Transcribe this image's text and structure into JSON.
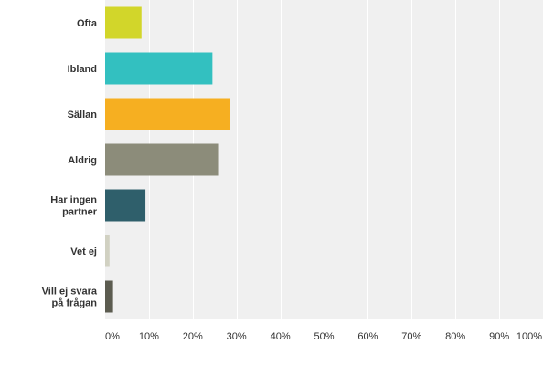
{
  "chart_data": {
    "type": "bar",
    "orientation": "horizontal",
    "categories": [
      [
        "Ofta"
      ],
      [
        "Ibland"
      ],
      [
        "Sällan"
      ],
      [
        "Aldrig"
      ],
      [
        "Har ingen",
        "partner"
      ],
      [
        "Vet ej"
      ],
      [
        "Vill ej svara",
        "på frågan"
      ]
    ],
    "values": [
      8.3,
      24.5,
      28.6,
      26.0,
      9.2,
      1.0,
      1.8
    ],
    "colors": [
      "#d2d62a",
      "#33c0c0",
      "#f6af21",
      "#8c8c7a",
      "#2f5f6b",
      "#d1d1c2",
      "#5c5c50"
    ],
    "xlim": [
      0,
      100
    ],
    "xticks": [
      "0%",
      "10%",
      "20%",
      "30%",
      "40%",
      "50%",
      "60%",
      "70%",
      "80%",
      "90%",
      "100%"
    ],
    "grid": true,
    "title": "",
    "xlabel": "",
    "ylabel": ""
  }
}
